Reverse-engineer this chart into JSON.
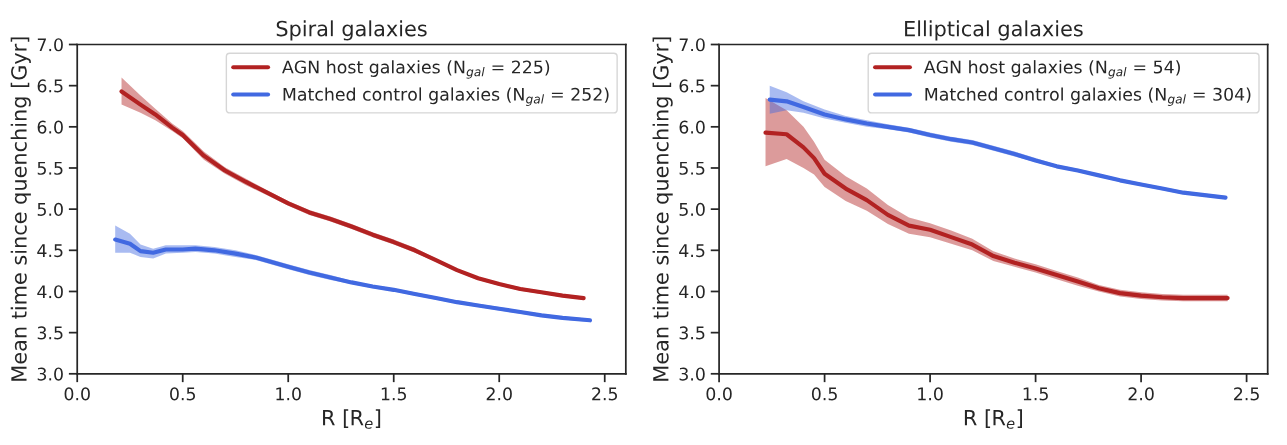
{
  "chart_data": [
    {
      "type": "line",
      "title": "Spiral galaxies",
      "xlabel": "R [R$_{e}$]",
      "ylabel": "Mean time since quenching [Gyr]",
      "xlim": [
        0.0,
        2.6
      ],
      "xticks": [
        {
          "value": 0,
          "label": "0.0"
        },
        0.5,
        {
          "value": 1,
          "label": "1.0"
        },
        1.5,
        {
          "value": 2,
          "label": "2.0"
        },
        2.5
      ],
      "ylim": [
        3.0,
        7.0
      ],
      "yticks": [
        {
          "value": 3,
          "label": "3.0"
        },
        3.5,
        {
          "value": 4,
          "label": "4.0"
        },
        4.5,
        {
          "value": 5,
          "label": "5.0"
        },
        5.5,
        {
          "value": 6,
          "label": "6.0"
        },
        6.5,
        {
          "value": 7,
          "label": "7.0"
        }
      ],
      "grid": false,
      "legend": "top right",
      "series": [
        {
          "name": "AGN host galaxies (N$_{gal}$ = 225)",
          "color": "#b22222",
          "x": [
            0.21,
            0.3,
            0.37,
            0.45,
            0.5,
            0.6,
            0.7,
            0.8,
            0.9,
            1.0,
            1.1,
            1.2,
            1.3,
            1.4,
            1.5,
            1.6,
            1.7,
            1.8,
            1.9,
            2.0,
            2.1,
            2.2,
            2.3,
            2.4
          ],
          "values": [
            6.43,
            6.27,
            6.15,
            5.99,
            5.9,
            5.65,
            5.47,
            5.33,
            5.2,
            5.07,
            4.96,
            4.88,
            4.79,
            4.69,
            4.6,
            4.5,
            4.38,
            4.26,
            4.16,
            4.09,
            4.03,
            3.99,
            3.95,
            3.92
          ],
          "lower": [
            6.27,
            6.17,
            6.08,
            5.95,
            5.86,
            5.6,
            5.43,
            5.29,
            5.17,
            5.04,
            4.93,
            4.85,
            4.76,
            4.66,
            4.57,
            4.47,
            4.36,
            4.24,
            4.14,
            4.07,
            4.01,
            3.97,
            3.93,
            3.9
          ],
          "upper": [
            6.6,
            6.38,
            6.22,
            6.04,
            5.95,
            5.7,
            5.51,
            5.37,
            5.23,
            5.1,
            4.99,
            4.91,
            4.82,
            4.72,
            4.63,
            4.53,
            4.4,
            4.28,
            4.18,
            4.11,
            4.05,
            4.01,
            3.97,
            3.94
          ]
        },
        {
          "name": "Matched control galaxies (N$_{gal}$ = 252)",
          "color": "#4169e1",
          "x": [
            0.18,
            0.25,
            0.3,
            0.36,
            0.42,
            0.5,
            0.56,
            0.65,
            0.75,
            0.85,
            1.0,
            1.1,
            1.2,
            1.3,
            1.4,
            1.5,
            1.6,
            1.7,
            1.8,
            1.9,
            2.0,
            2.1,
            2.2,
            2.3,
            2.43
          ],
          "values": [
            4.63,
            4.58,
            4.49,
            4.47,
            4.51,
            4.51,
            4.52,
            4.5,
            4.46,
            4.41,
            4.3,
            4.23,
            4.17,
            4.11,
            4.06,
            4.02,
            3.97,
            3.92,
            3.87,
            3.83,
            3.79,
            3.75,
            3.71,
            3.68,
            3.65
          ],
          "lower": [
            4.47,
            4.47,
            4.42,
            4.4,
            4.46,
            4.47,
            4.48,
            4.46,
            4.42,
            4.38,
            4.27,
            4.2,
            4.14,
            4.09,
            4.04,
            4.0,
            3.95,
            3.9,
            3.85,
            3.81,
            3.77,
            3.73,
            3.69,
            3.66,
            3.63
          ],
          "upper": [
            4.8,
            4.7,
            4.57,
            4.52,
            4.56,
            4.56,
            4.56,
            4.54,
            4.5,
            4.44,
            4.33,
            4.26,
            4.2,
            4.13,
            4.08,
            4.04,
            3.99,
            3.94,
            3.89,
            3.85,
            3.81,
            3.77,
            3.73,
            3.7,
            3.67
          ]
        }
      ]
    },
    {
      "type": "line",
      "title": "Elliptical galaxies",
      "xlabel": "R [R$_{e}$]",
      "ylabel": "Mean time since quenching [Gyr]",
      "xlim": [
        0.0,
        2.6
      ],
      "xticks": [
        {
          "value": 0,
          "label": "0.0"
        },
        0.5,
        {
          "value": 1,
          "label": "1.0"
        },
        1.5,
        {
          "value": 2,
          "label": "2.0"
        },
        2.5
      ],
      "ylim": [
        3.0,
        7.0
      ],
      "yticks": [
        {
          "value": 3,
          "label": "3.0"
        },
        3.5,
        {
          "value": 4,
          "label": "4.0"
        },
        4.5,
        {
          "value": 5,
          "label": "5.0"
        },
        5.5,
        {
          "value": 6,
          "label": "6.0"
        },
        6.5,
        {
          "value": 7,
          "label": "7.0"
        }
      ],
      "grid": false,
      "legend": "top right",
      "series": [
        {
          "name": "AGN host galaxies (N$_{gal}$ = 54)",
          "color": "#b22222",
          "x": [
            0.22,
            0.32,
            0.4,
            0.45,
            0.5,
            0.6,
            0.7,
            0.8,
            0.9,
            1.0,
            1.1,
            1.2,
            1.3,
            1.4,
            1.5,
            1.6,
            1.7,
            1.8,
            1.9,
            2.0,
            2.1,
            2.2,
            2.3,
            2.41
          ],
          "values": [
            5.93,
            5.91,
            5.75,
            5.62,
            5.43,
            5.25,
            5.11,
            4.93,
            4.8,
            4.75,
            4.66,
            4.57,
            4.43,
            4.35,
            4.28,
            4.2,
            4.12,
            4.04,
            3.98,
            3.95,
            3.93,
            3.92,
            3.92,
            3.92
          ],
          "lower": [
            5.52,
            5.61,
            5.5,
            5.42,
            5.27,
            5.1,
            4.98,
            4.82,
            4.7,
            4.66,
            4.58,
            4.5,
            4.37,
            4.3,
            4.23,
            4.15,
            4.07,
            4.0,
            3.94,
            3.91,
            3.89,
            3.88,
            3.88,
            3.88
          ],
          "upper": [
            6.35,
            6.2,
            6.0,
            5.82,
            5.6,
            5.4,
            5.25,
            5.05,
            4.9,
            4.83,
            4.74,
            4.64,
            4.49,
            4.4,
            4.33,
            4.25,
            4.17,
            4.08,
            4.02,
            3.99,
            3.97,
            3.96,
            3.96,
            3.96
          ]
        },
        {
          "name": "Matched control galaxies (N$_{gal}$ = 304)",
          "color": "#4169e1",
          "x": [
            0.24,
            0.32,
            0.4,
            0.5,
            0.6,
            0.7,
            0.8,
            0.9,
            1.0,
            1.1,
            1.2,
            1.3,
            1.4,
            1.5,
            1.6,
            1.7,
            1.8,
            1.9,
            2.0,
            2.1,
            2.2,
            2.3,
            2.4
          ],
          "values": [
            6.33,
            6.31,
            6.24,
            6.15,
            6.09,
            6.04,
            6.0,
            5.96,
            5.9,
            5.85,
            5.81,
            5.74,
            5.67,
            5.59,
            5.52,
            5.47,
            5.41,
            5.35,
            5.3,
            5.25,
            5.2,
            5.17,
            5.14
          ],
          "lower": [
            6.16,
            6.2,
            6.17,
            6.1,
            6.05,
            6.0,
            5.97,
            5.93,
            5.87,
            5.82,
            5.78,
            5.71,
            5.64,
            5.57,
            5.5,
            5.45,
            5.39,
            5.33,
            5.28,
            5.23,
            5.18,
            5.15,
            5.12
          ],
          "upper": [
            6.5,
            6.42,
            6.31,
            6.21,
            6.13,
            6.08,
            6.03,
            5.99,
            5.93,
            5.88,
            5.84,
            5.77,
            5.7,
            5.62,
            5.54,
            5.49,
            5.43,
            5.37,
            5.32,
            5.27,
            5.22,
            5.19,
            5.16
          ]
        }
      ]
    }
  ]
}
